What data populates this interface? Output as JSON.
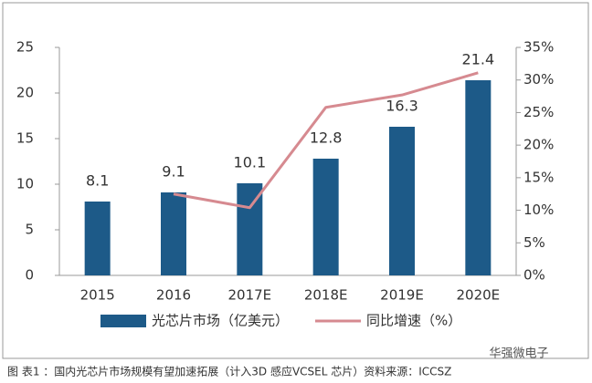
{
  "chart_data": {
    "type": "bar-line",
    "categories": [
      "2015",
      "2016",
      "2017E",
      "2018E",
      "2019E",
      "2020E"
    ],
    "series": [
      {
        "name": "光芯片市场（亿美元）",
        "type": "bar",
        "color": "#1d5a88",
        "values": [
          8.1,
          9.1,
          10.1,
          12.8,
          16.3,
          21.4
        ]
      },
      {
        "name": "同比增速（%）",
        "type": "line",
        "axis": "y2",
        "color": "#d68a90",
        "values": [
          null,
          12.5,
          10.4,
          25.8,
          27.7,
          31.1
        ]
      }
    ],
    "ylim": [
      0,
      25
    ],
    "yticks": [
      0,
      5,
      10,
      15,
      20,
      25
    ],
    "y2lim": [
      0,
      35
    ],
    "y2ticks": [
      {
        "value": 0,
        "label": "0%"
      },
      {
        "value": 5,
        "label": "5%"
      },
      {
        "value": 10,
        "label": "10%"
      },
      {
        "value": 15,
        "label": "15%"
      },
      {
        "value": 20,
        "label": "20%"
      },
      {
        "value": 25,
        "label": "25%"
      },
      {
        "value": 30,
        "label": "30%"
      },
      {
        "value": 35,
        "label": "35%"
      }
    ],
    "legend": "bottom",
    "caption": "图 表1 ：国内光芯片市场规模有望加速拓展（计入3D 感应VCSEL 芯片）资料来源：ICCSZ",
    "watermark": "华强微电子"
  }
}
